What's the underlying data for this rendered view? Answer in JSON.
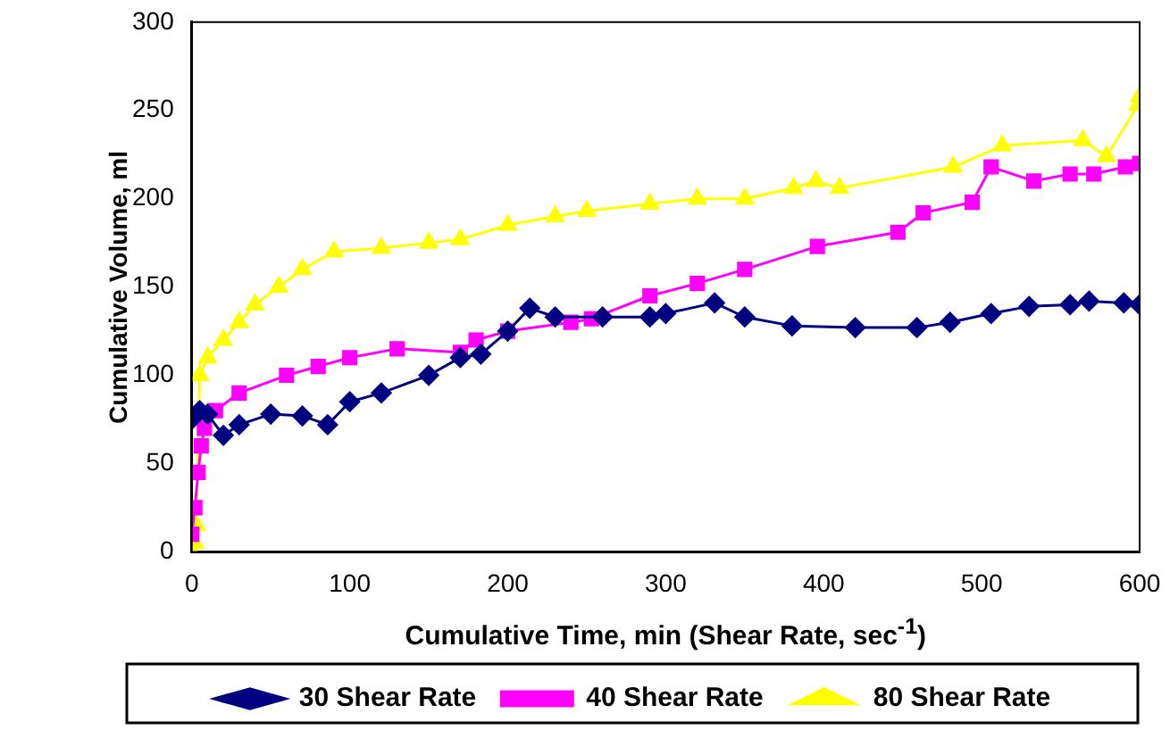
{
  "chart_data": {
    "type": "line",
    "xlabel": "Cumulative Time, min (Shear Rate, sec$^{-1}$)",
    "ylabel": "Cumulative Volume, ml",
    "xlim": [
      0,
      600
    ],
    "xticks": [
      0,
      100,
      200,
      300,
      400,
      500,
      600
    ],
    "ylim": [
      0,
      300
    ],
    "yticks": [
      0,
      50,
      100,
      150,
      200,
      250,
      300
    ],
    "grid": false,
    "legend": "bottom",
    "series": [
      {
        "name": "30 Shear Rate",
        "color": "#000080",
        "marker": "diamond",
        "x": [
          0,
          5,
          10,
          20,
          30,
          50,
          70,
          86,
          100,
          120,
          150,
          170,
          183,
          200,
          214,
          230,
          260,
          290,
          300,
          331,
          350,
          380,
          420,
          459,
          480,
          506,
          530,
          556,
          568,
          590,
          600
        ],
        "values": [
          75,
          80,
          78,
          66,
          72,
          78,
          77,
          72,
          85,
          90,
          100,
          110,
          112,
          125,
          138,
          133,
          133,
          133,
          135,
          141,
          133,
          128,
          127,
          127,
          130,
          135,
          139,
          140,
          142,
          141,
          140
        ]
      },
      {
        "name": "40 Shear Rate",
        "color": "#ff00ff",
        "marker": "square",
        "x": [
          0,
          2,
          4,
          6,
          8,
          15,
          30,
          60,
          80,
          100,
          130,
          170,
          180,
          200,
          240,
          253,
          290,
          320,
          350,
          396,
          447,
          463,
          494,
          506,
          533,
          556,
          571,
          591,
          600
        ],
        "values": [
          10,
          25,
          45,
          60,
          70,
          80,
          90,
          100,
          105,
          110,
          115,
          113,
          120,
          125,
          130,
          132,
          145,
          152,
          160,
          173,
          181,
          192,
          198,
          218,
          210,
          214,
          214,
          218,
          220
        ]
      },
      {
        "name": "80 Shear Rate",
        "color": "#ffff00",
        "marker": "triangle",
        "x": [
          0,
          2,
          3,
          5,
          10,
          20,
          30,
          40,
          55,
          70,
          90,
          120,
          150,
          170,
          200,
          230,
          250,
          290,
          320,
          350,
          381,
          395,
          410,
          482,
          513,
          564,
          579,
          599,
          600
        ],
        "values": [
          0,
          5,
          15,
          100,
          110,
          120,
          130,
          140,
          150,
          160,
          170,
          172,
          175,
          177,
          185,
          190,
          193,
          197,
          200,
          200,
          206,
          210,
          206,
          218,
          230,
          233,
          224,
          253,
          258
        ]
      }
    ]
  }
}
